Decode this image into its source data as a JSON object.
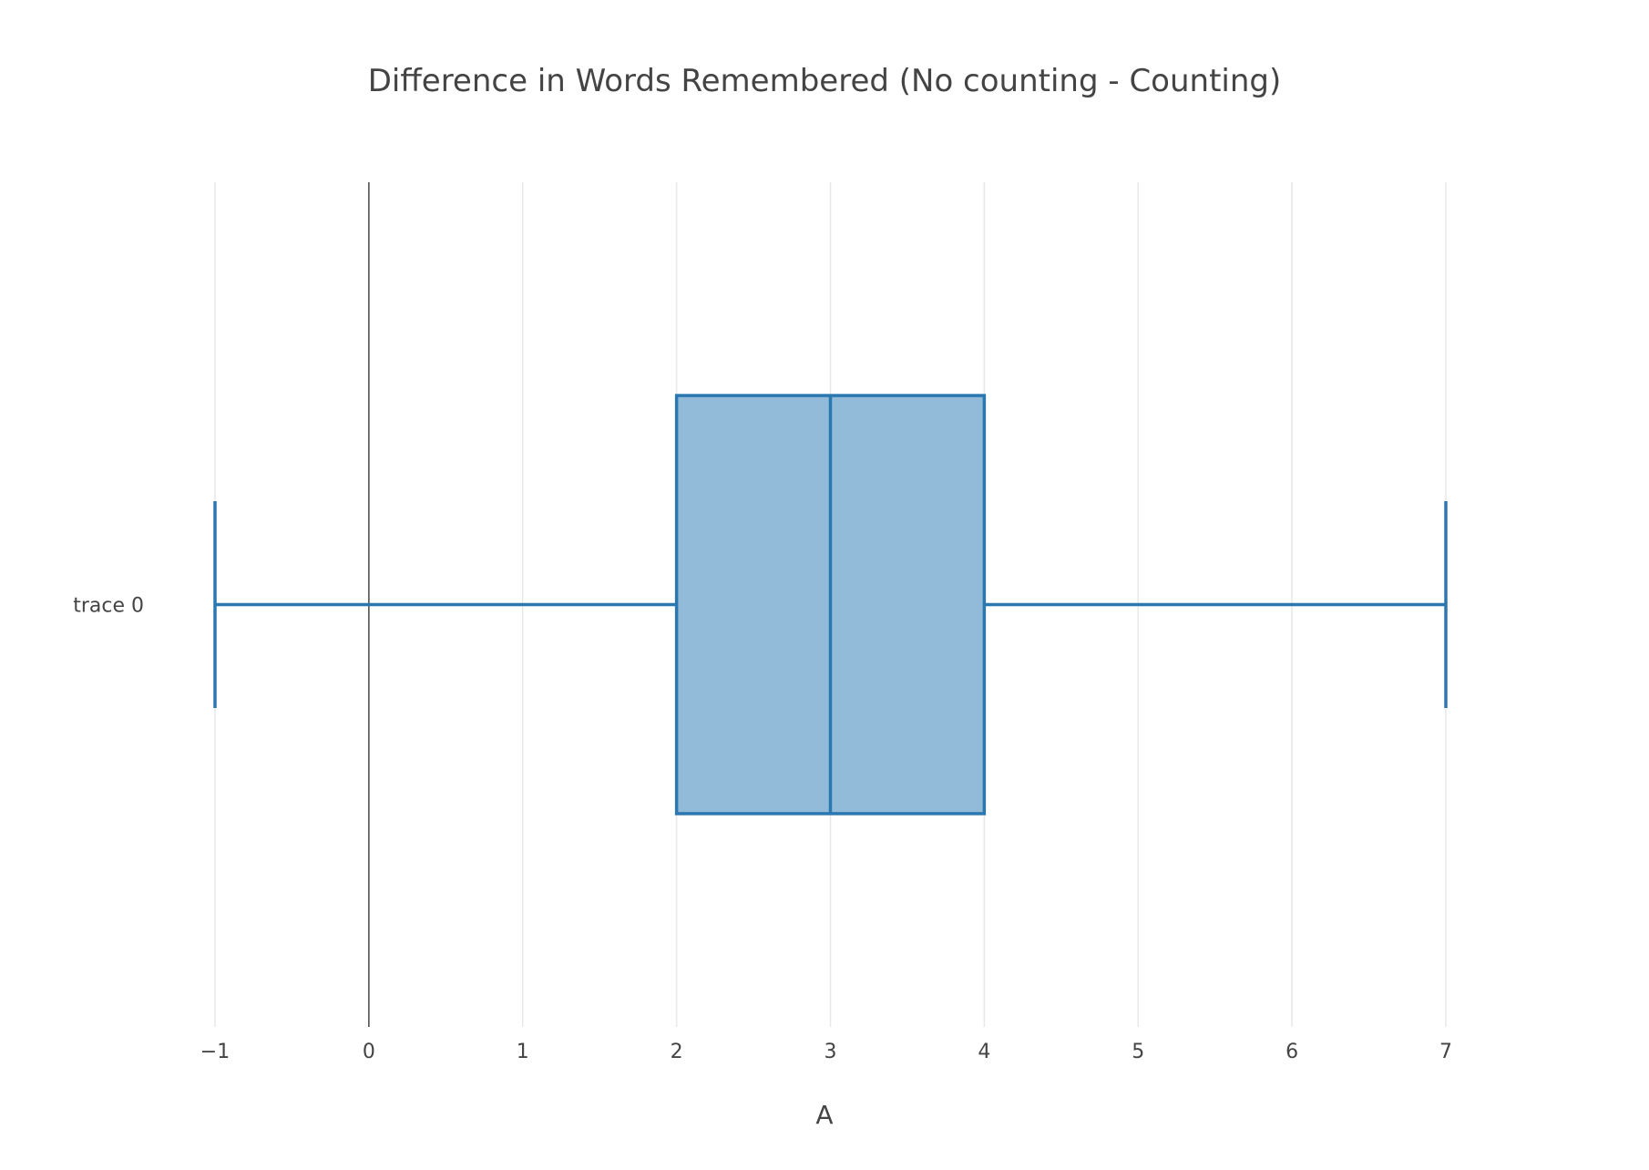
{
  "chart_data": {
    "type": "box",
    "title": "Difference in Words Remembered (No counting - Counting)",
    "xlabel": "A",
    "ylabel": "",
    "orientation": "horizontal",
    "xlim": [
      -1,
      7
    ],
    "xticks": [
      -1,
      0,
      1,
      2,
      3,
      4,
      5,
      6,
      7
    ],
    "xtick_labels": [
      "−1",
      "0",
      "1",
      "2",
      "3",
      "4",
      "5",
      "6",
      "7"
    ],
    "zero_line": true,
    "grid": true,
    "series": [
      {
        "name": "trace 0",
        "min": -1,
        "q1": 2,
        "median": 3,
        "q3": 4,
        "max": 7
      }
    ],
    "colors": {
      "box_line": "#2b77b0",
      "box_fill": "#92bbd9",
      "grid": "#e8e8e8",
      "zero_line": "#444444",
      "text": "#444444"
    }
  }
}
